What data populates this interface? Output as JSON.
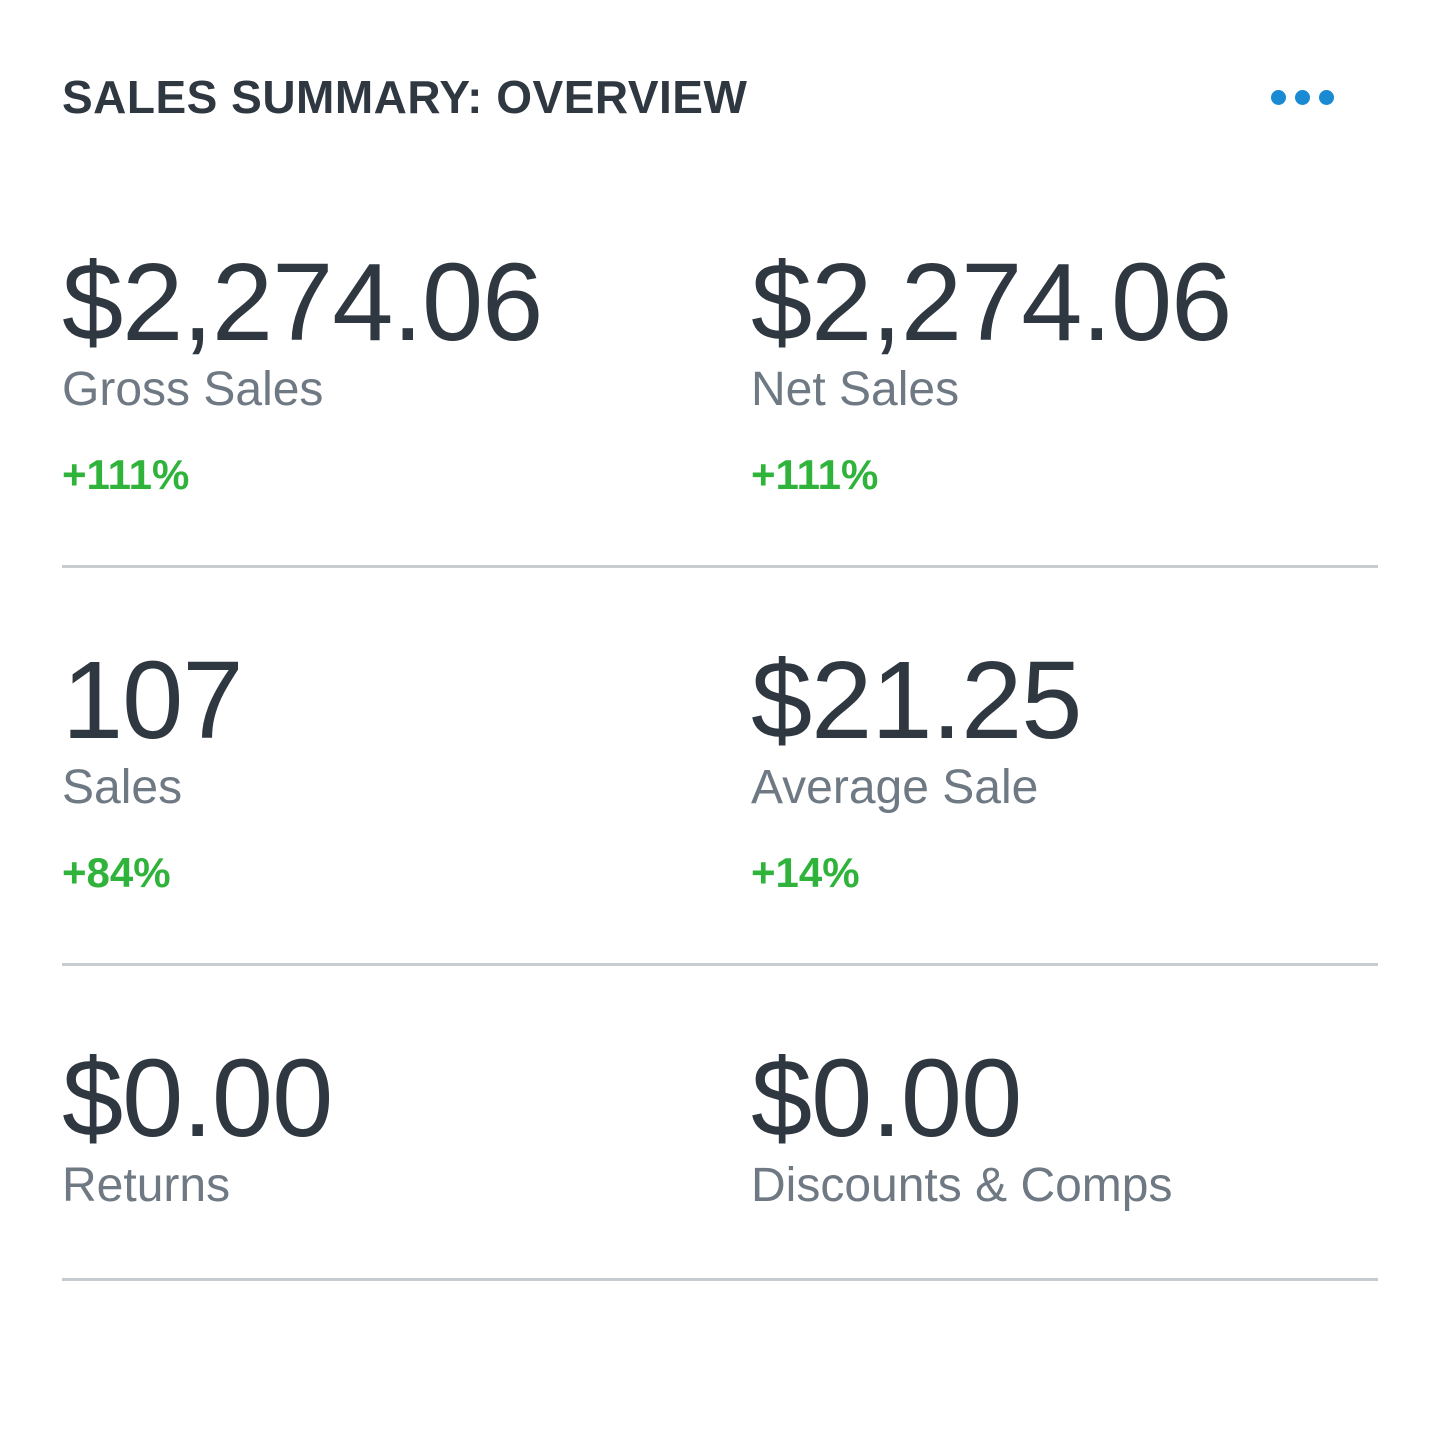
{
  "header": {
    "title": "SALES SUMMARY: OVERVIEW",
    "more_icon": "more-horizontal-icon"
  },
  "colors": {
    "accent": "#1a8ad3",
    "positive": "#2fb33b",
    "text": "#2f3841",
    "label": "#6f7984",
    "divider": "#c7ccd1"
  },
  "metrics": {
    "gross_sales": {
      "value": "$2,274.06",
      "label": "Gross Sales",
      "change": "+111%"
    },
    "net_sales": {
      "value": "$2,274.06",
      "label": "Net Sales",
      "change": "+111%"
    },
    "sales": {
      "value": "107",
      "label": "Sales",
      "change": "+84%"
    },
    "average_sale": {
      "value": "$21.25",
      "label": "Average Sale",
      "change": "+14%"
    },
    "returns": {
      "value": "$0.00",
      "label": "Returns"
    },
    "discounts_comps": {
      "value": "$0.00",
      "label": "Discounts & Comps"
    }
  }
}
